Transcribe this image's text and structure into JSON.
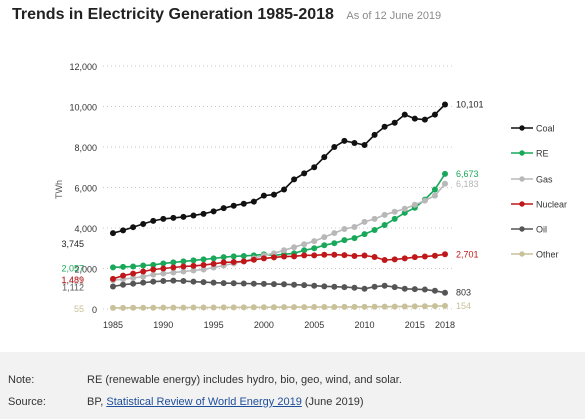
{
  "header": {
    "title": "Trends in Electricity Generation 1985-2018",
    "as_of": "As of 12 June 2019"
  },
  "notes": {
    "note_label": "Note:",
    "note_text": "RE (renewable energy) includes hydro, bio, geo, wind, and solar.",
    "source_label": "Source:",
    "source_prefix": "BP, ",
    "source_link": "Statistical Review of World Energy 2019",
    "source_suffix": " (June 2019)"
  },
  "chart_data": {
    "type": "line",
    "title": "",
    "xlabel": "",
    "ylabel": "TWh",
    "xlim": [
      1985,
      2018
    ],
    "ylim": [
      0,
      12000
    ],
    "yticks": [
      0,
      2000,
      4000,
      6000,
      8000,
      10000,
      12000
    ],
    "ytick_labels": [
      "0",
      "2,000",
      "4,000",
      "6,000",
      "8,000",
      "10,000",
      "12,000"
    ],
    "xticks": [
      1985,
      1990,
      1995,
      2000,
      2005,
      2010,
      2015,
      2018
    ],
    "xtick_labels": [
      "1985",
      "1990",
      "1995",
      "2000",
      "2005",
      "2010",
      "2015",
      "2018"
    ],
    "grid": "horizontal dotted",
    "legend": "right",
    "x": [
      1985,
      1986,
      1987,
      1988,
      1989,
      1990,
      1991,
      1992,
      1993,
      1994,
      1995,
      1996,
      1997,
      1998,
      1999,
      2000,
      2001,
      2002,
      2003,
      2004,
      2005,
      2006,
      2007,
      2008,
      2009,
      2010,
      2011,
      2012,
      2013,
      2014,
      2015,
      2016,
      2017,
      2018
    ],
    "series": [
      {
        "name": "Coal",
        "color": "#111111",
        "start_label": "3,745",
        "end_label": "10,101",
        "values": [
          3745,
          3880,
          4040,
          4200,
          4350,
          4450,
          4500,
          4550,
          4620,
          4700,
          4820,
          4980,
          5100,
          5200,
          5300,
          5600,
          5650,
          5900,
          6400,
          6700,
          7000,
          7500,
          8000,
          8300,
          8200,
          8100,
          8600,
          9000,
          9200,
          9600,
          9400,
          9350,
          9600,
          10101
        ]
      },
      {
        "name": "RE",
        "color": "#19a85a",
        "start_label": "2,057",
        "end_label": "6,673",
        "values": [
          2057,
          2080,
          2100,
          2150,
          2180,
          2250,
          2300,
          2350,
          2400,
          2450,
          2500,
          2560,
          2600,
          2620,
          2650,
          2700,
          2650,
          2700,
          2750,
          2900,
          3000,
          3150,
          3250,
          3400,
          3500,
          3700,
          3900,
          4150,
          4450,
          4750,
          5000,
          5400,
          5900,
          6673
        ]
      },
      {
        "name": "Gas",
        "color": "#b8b8b8",
        "start_label": "1,421",
        "end_label": "6,183",
        "values": [
          1421,
          1470,
          1530,
          1600,
          1700,
          1750,
          1800,
          1850,
          1900,
          1950,
          2050,
          2150,
          2250,
          2350,
          2500,
          2650,
          2750,
          2900,
          3050,
          3200,
          3350,
          3550,
          3750,
          3950,
          4050,
          4300,
          4450,
          4650,
          4800,
          4950,
          5150,
          5350,
          5600,
          6183
        ]
      },
      {
        "name": "Nuclear",
        "color": "#c0181a",
        "start_label": "1,489",
        "end_label": "2,701",
        "values": [
          1489,
          1650,
          1750,
          1850,
          1950,
          2000,
          2050,
          2100,
          2130,
          2170,
          2230,
          2300,
          2320,
          2350,
          2430,
          2500,
          2550,
          2590,
          2600,
          2650,
          2650,
          2680,
          2680,
          2660,
          2620,
          2640,
          2570,
          2420,
          2450,
          2500,
          2560,
          2590,
          2630,
          2701
        ]
      },
      {
        "name": "Oil",
        "color": "#555555",
        "start_label": "1,112",
        "end_label": "803",
        "values": [
          1112,
          1200,
          1250,
          1300,
          1350,
          1380,
          1400,
          1380,
          1350,
          1330,
          1300,
          1280,
          1270,
          1260,
          1250,
          1240,
          1230,
          1220,
          1200,
          1180,
          1150,
          1120,
          1100,
          1080,
          1050,
          1000,
          1100,
          1150,
          1080,
          1000,
          980,
          960,
          900,
          803
        ]
      },
      {
        "name": "Other",
        "color": "#c9c19a",
        "start_label": "55",
        "end_label": "154",
        "values": [
          55,
          58,
          60,
          62,
          64,
          66,
          68,
          70,
          72,
          74,
          76,
          78,
          80,
          82,
          84,
          86,
          88,
          90,
          92,
          94,
          96,
          98,
          100,
          104,
          106,
          108,
          112,
          116,
          120,
          126,
          132,
          138,
          145,
          154
        ]
      }
    ]
  }
}
